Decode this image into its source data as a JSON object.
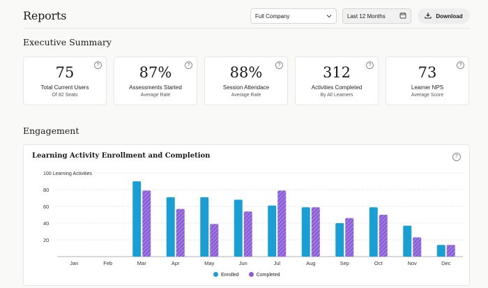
{
  "header": {
    "title": "Reports",
    "company_select": "Full Company",
    "date_range": "Last 12 Months",
    "download_label": "Download"
  },
  "summary": {
    "heading": "Executive Summary",
    "cards": [
      {
        "value": "75",
        "label": "Total Current Users",
        "sub": "Of 82 Seats"
      },
      {
        "value": "87%",
        "label": "Assessments Started",
        "sub": "Average Rate"
      },
      {
        "value": "88%",
        "label": "Session Attendace",
        "sub": "Average Rate"
      },
      {
        "value": "312",
        "label": "Activities Completed",
        "sub": "By All Learners"
      },
      {
        "value": "73",
        "label": "Learner NPS",
        "sub": "Average Score"
      }
    ],
    "help_glyph": "?"
  },
  "engagement": {
    "heading": "Engagement"
  },
  "chart_data": {
    "type": "bar",
    "title": "Learning Activity Enrollment and Completion",
    "ylabel": "100 Learning Activities",
    "ylim": [
      0,
      100
    ],
    "yticks": [
      20,
      40,
      60,
      80
    ],
    "grid": true,
    "legend_position": "bottom-center",
    "categories": [
      "Jan",
      "Feb",
      "Mar",
      "Apr",
      "May",
      "Jun",
      "Jul",
      "Aug",
      "Sep",
      "Oct",
      "Nov",
      "Dec"
    ],
    "series": [
      {
        "name": "Enrolled",
        "color": "#1a9fd4",
        "values": [
          0,
          0,
          90,
          71,
          71,
          68,
          61,
          59,
          40,
          59,
          37,
          14
        ]
      },
      {
        "name": "Completed",
        "color": "#8a5bd6",
        "values": [
          0,
          0,
          79,
          57,
          39,
          54,
          79,
          59,
          46,
          50,
          23,
          14
        ]
      }
    ]
  }
}
